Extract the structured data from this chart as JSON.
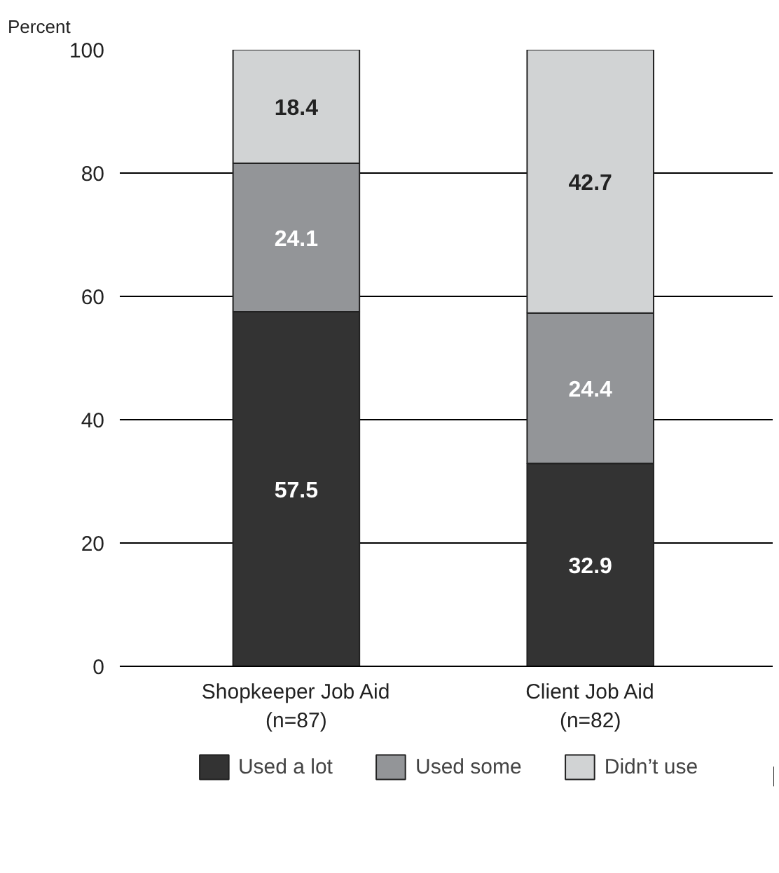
{
  "chart_data": {
    "type": "bar",
    "stacked": true,
    "ylabel": "Percent",
    "categories": [
      "Shopkeeper Job Aid\n(n=87)",
      "Client Job Aid\n(n=82)"
    ],
    "series": [
      {
        "name": "Used a lot",
        "color": "#333333",
        "values": [
          57.5,
          32.9
        ]
      },
      {
        "name": "Used some",
        "color": "#939598",
        "values": [
          24.1,
          24.4
        ]
      },
      {
        "name": "Didn’t use",
        "color": "#d1d3d4",
        "values": [
          18.4,
          42.7
        ]
      }
    ],
    "ylim": [
      0,
      100
    ],
    "yticks": [
      0,
      20,
      40,
      60,
      80,
      100
    ],
    "grid": "y",
    "legend": "bottom",
    "data_labels": true
  }
}
